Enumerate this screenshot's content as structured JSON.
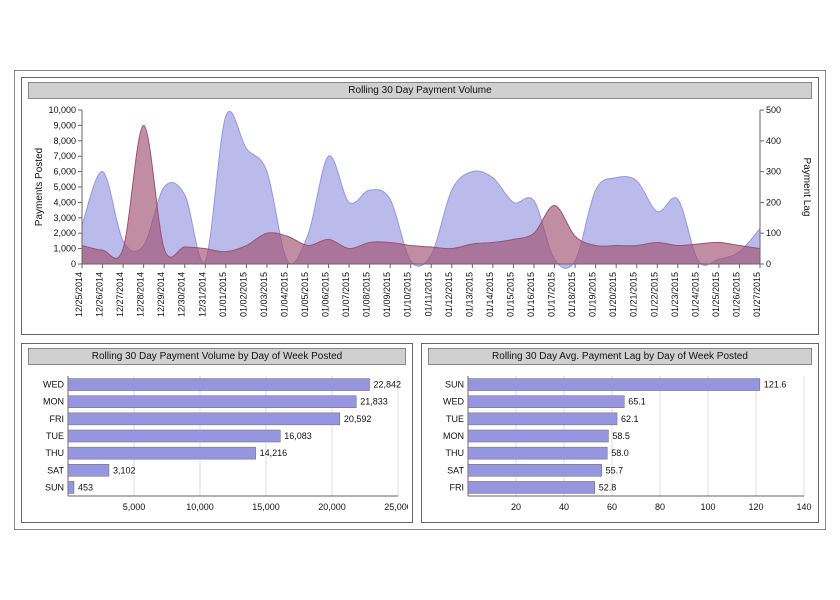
{
  "colors": {
    "area_primary": "#9696e0",
    "area_primary_opacity": 0.65,
    "area_secondary": "#a05070",
    "area_secondary_opacity": 0.65,
    "bar_fill": "#9696e0",
    "panel_border": "#666666",
    "title_bg": "#d0d0d0",
    "grid": "#bbbbbb",
    "text": "#111111"
  },
  "top_chart": {
    "title": "Rolling 30 Day Payment Volume",
    "left_axis_label": "Payments Posted",
    "right_axis_label": "Payment Lag",
    "left_ylim": [
      0,
      10000
    ],
    "left_ytick_step": 1000,
    "right_ylim": [
      0,
      500
    ],
    "right_ytick_step": 100,
    "dates": [
      "12/25/2014",
      "12/26/2014",
      "12/27/2014",
      "12/28/2014",
      "12/29/2014",
      "12/30/2014",
      "12/31/2014",
      "01/01/2015",
      "01/02/2015",
      "01/03/2015",
      "01/04/2015",
      "01/05/2015",
      "01/06/2015",
      "01/07/2015",
      "01/08/2015",
      "01/09/2015",
      "01/10/2015",
      "01/11/2015",
      "01/12/2015",
      "01/13/2015",
      "01/14/2015",
      "01/15/2015",
      "01/16/2015",
      "01/17/2015",
      "01/18/2015",
      "01/19/2015",
      "01/20/2015",
      "01/21/2015",
      "01/22/2015",
      "01/23/2015",
      "01/24/2015",
      "01/25/2015",
      "01/26/2015",
      "01/27/2015"
    ],
    "primary_values": [
      2500,
      6000,
      1500,
      1200,
      5000,
      4500,
      200,
      9600,
      7500,
      6000,
      200,
      1900,
      7000,
      4000,
      4800,
      4200,
      200,
      600,
      4800,
      6000,
      5600,
      4000,
      4100,
      300,
      200,
      4800,
      5600,
      5400,
      3400,
      4200,
      200,
      300,
      800,
      2300
    ],
    "secondary_values": [
      60,
      45,
      50,
      450,
      50,
      55,
      50,
      40,
      60,
      100,
      90,
      60,
      80,
      50,
      70,
      70,
      60,
      55,
      50,
      65,
      70,
      80,
      100,
      190,
      90,
      60,
      60,
      60,
      70,
      60,
      65,
      70,
      60,
      50
    ]
  },
  "bottom_left_chart": {
    "title": "Rolling 30 Day Payment Volume by Day of Week Posted",
    "type": "bar-horizontal",
    "xlim": [
      0,
      25000
    ],
    "xtick_step": 5000,
    "categories": [
      "WED",
      "MON",
      "FRI",
      "TUE",
      "THU",
      "SAT",
      "SUN"
    ],
    "values": [
      22842,
      21833,
      20592,
      16083,
      14216,
      3102,
      453
    ],
    "value_labels": [
      "22,842",
      "21,833",
      "20,592",
      "16,083",
      "14,216",
      "3,102",
      "453"
    ]
  },
  "bottom_right_chart": {
    "title": "Rolling 30 Day Avg. Payment Lag by Day of Week Posted",
    "type": "bar-horizontal",
    "xlim": [
      0,
      140
    ],
    "xtick_step": 20,
    "categories": [
      "SUN",
      "WED",
      "TUE",
      "MON",
      "THU",
      "SAT",
      "FRI"
    ],
    "values": [
      121.6,
      65.1,
      62.1,
      58.5,
      58.0,
      55.7,
      52.8
    ],
    "value_labels": [
      "121.6",
      "65.1",
      "62.1",
      "58.5",
      "58.0",
      "55.7",
      "52.8"
    ]
  }
}
